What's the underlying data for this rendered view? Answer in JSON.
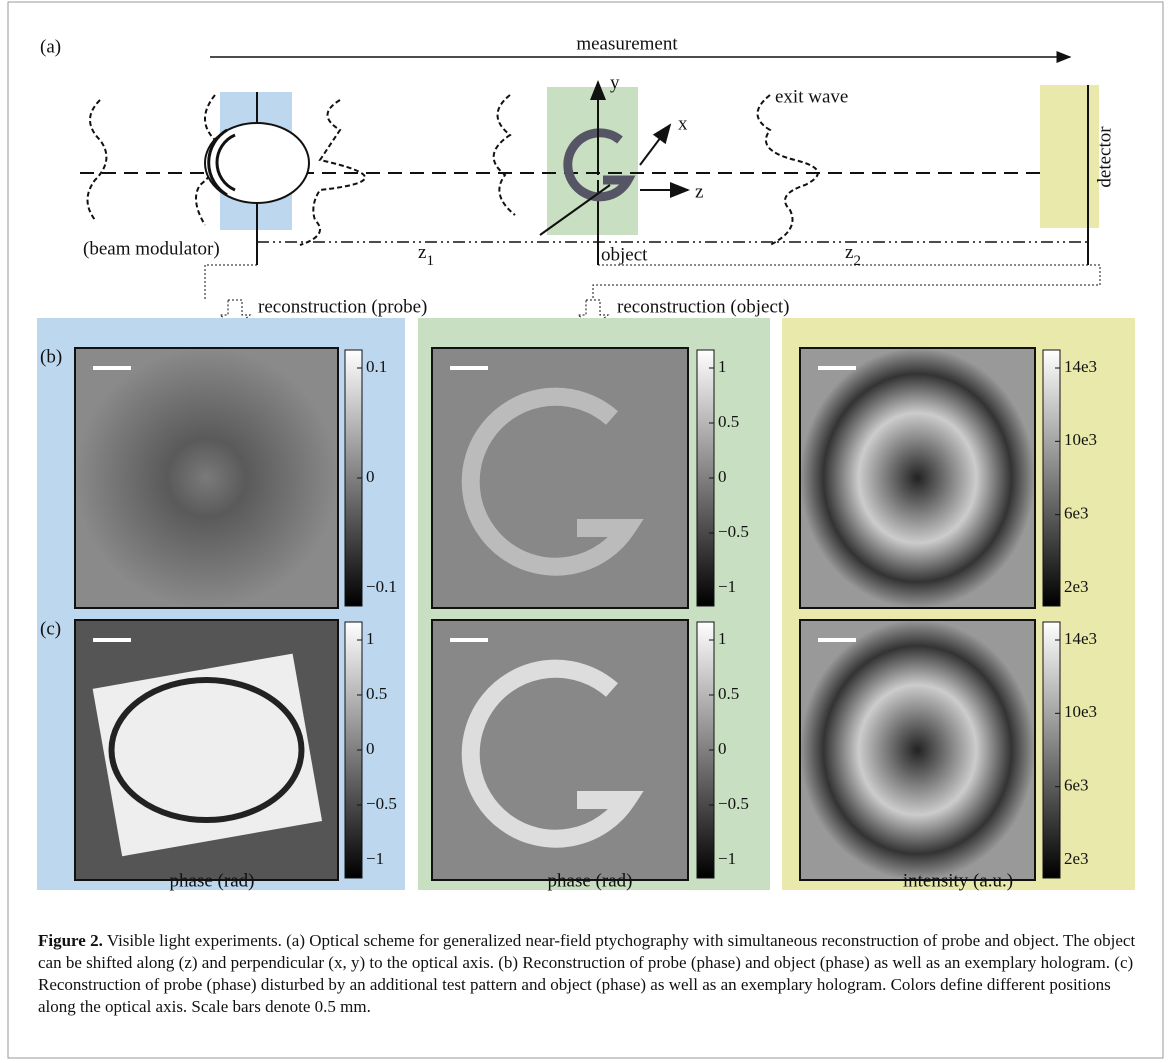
{
  "scheme": {
    "label": "(a)",
    "measurement": "measurement",
    "exit_wave": "exit wave",
    "axis_x": "x",
    "axis_y": "y",
    "axis_z": "z",
    "detector": "detector",
    "beam_modulator": "(beam modulator)",
    "z1": {
      "base": "z",
      "sub": "1"
    },
    "object": "object",
    "z2": {
      "base": "z",
      "sub": "2"
    },
    "recon_probe": "reconstruction (probe)",
    "recon_object": "reconstruction (object)"
  },
  "rows": [
    "(b)",
    "(c)"
  ],
  "columns": [
    {
      "xlabel": "phase (rad)",
      "colorbars": [
        [
          "0.1",
          "0",
          "−0.1"
        ],
        [
          "1",
          "0.5",
          "0",
          "−0.5",
          "−1"
        ]
      ]
    },
    {
      "xlabel": "phase (rad)",
      "colorbars": [
        [
          "1",
          "0.5",
          "0",
          "−0.5",
          "−1"
        ],
        [
          "1",
          "0.5",
          "0",
          "−0.5",
          "−1"
        ]
      ]
    },
    {
      "xlabel": "intensity (a.u.)",
      "colorbars": [
        [
          "14e3",
          "10e3",
          "6e3",
          "2e3"
        ],
        [
          "14e3",
          "10e3",
          "6e3",
          "2e3"
        ]
      ]
    }
  ],
  "caption": {
    "label": "Figure 2.",
    "text": "Visible light experiments. (a) Optical scheme for generalized near-field ptychography with simultaneous reconstruction of probe and object. The object can be shifted along (z) and perpendicular (x, y) to the optical axis. (b) Reconstruction of probe (phase) and object (phase) as well as an exemplary hologram. (c) Reconstruction of probe (phase) disturbed by an additional test pattern and object (phase) as well as an exemplary hologram. Colors define different positions along the optical axis. Scale bars denote 0.5 mm."
  }
}
